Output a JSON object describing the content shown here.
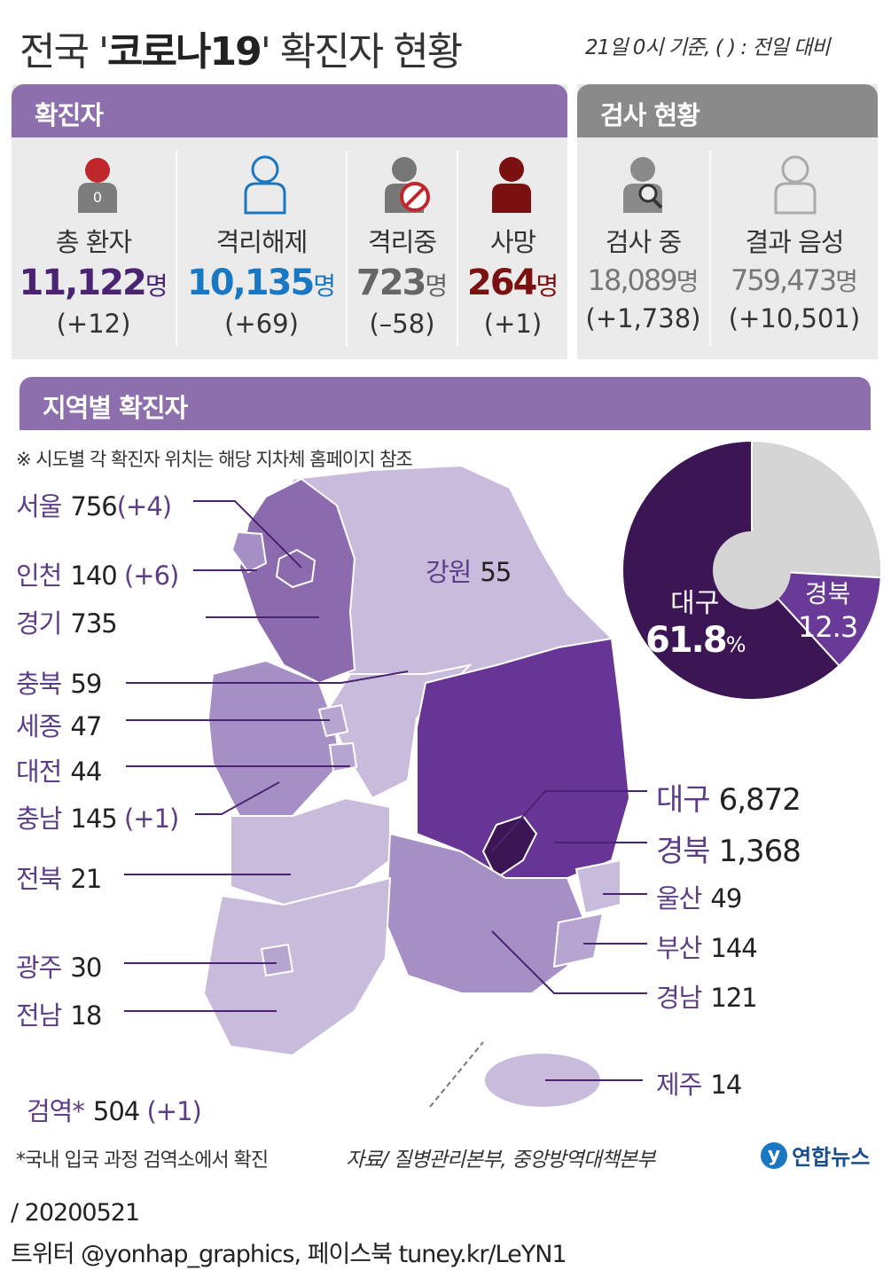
{
  "header": {
    "title_prefix": "전국 '",
    "title_bold": "코로나19",
    "title_suffix": "' 확진자 현황",
    "basis": "21일 0시 기준, ( ) : 전일 대비"
  },
  "confirmed_section": {
    "label": "확진자",
    "stats": [
      {
        "icon": "person-zero-icon",
        "label": "총 환자",
        "value": "11,122",
        "unit": "명",
        "change": "(+12)",
        "color": "#4a2473"
      },
      {
        "icon": "person-outline-icon",
        "label": "격리해제",
        "value": "10,135",
        "unit": "명",
        "change": "(+69)",
        "color": "#1a78c2"
      },
      {
        "icon": "person-no-icon",
        "label": "격리중",
        "value": "723",
        "unit": "명",
        "change": "(–58)",
        "color": "#666666"
      },
      {
        "icon": "person-dark-icon",
        "label": "사망",
        "value": "264",
        "unit": "명",
        "change": "(+1)",
        "color": "#7a1010"
      }
    ]
  },
  "testing_section": {
    "label": "검사 현황",
    "stats": [
      {
        "icon": "person-search-icon",
        "label": "검사 중",
        "value": "18,089",
        "unit": "명",
        "change": "(+1,738)",
        "color": "#777777"
      },
      {
        "icon": "person-light-outline-icon",
        "label": "결과 음성",
        "value": "759,473",
        "unit": "명",
        "change": "(+10,501)",
        "color": "#777777"
      }
    ]
  },
  "regional_section": {
    "label": "지역별 확진자",
    "note": "※ 시도별 각 확진자 위치는 해당 지차체 홈페이지 참조"
  },
  "regions_left": [
    {
      "name": "서울",
      "value": "756",
      "change": "(+4)"
    },
    {
      "name": "인천",
      "value": "140",
      "change": "(+6)"
    },
    {
      "name": "경기",
      "value": "735",
      "change": ""
    },
    {
      "name": "충북",
      "value": "59",
      "change": ""
    },
    {
      "name": "세종",
      "value": "47",
      "change": ""
    },
    {
      "name": "대전",
      "value": "44",
      "change": ""
    },
    {
      "name": "충남",
      "value": "145",
      "change": "(+1)"
    },
    {
      "name": "전북",
      "value": "21",
      "change": ""
    },
    {
      "name": "광주",
      "value": "30",
      "change": ""
    },
    {
      "name": "전남",
      "value": "18",
      "change": ""
    }
  ],
  "regions_right": [
    {
      "name": "대구",
      "value": "6,872"
    },
    {
      "name": "경북",
      "value": "1,368"
    },
    {
      "name": "울산",
      "value": "49"
    },
    {
      "name": "부산",
      "value": "144"
    },
    {
      "name": "경남",
      "value": "121"
    },
    {
      "name": "제주",
      "value": "14"
    }
  ],
  "gangwon": {
    "name": "강원",
    "value": "55"
  },
  "quarantine": {
    "name": "검역*",
    "value": "504",
    "change": "(+1)"
  },
  "pie": {
    "slices": [
      {
        "label": "대구",
        "value": 61.8,
        "display": "61.8",
        "unit": "%",
        "color": "#3b1554"
      },
      {
        "label": "경북",
        "value": 12.3,
        "display": "12.3",
        "unit": "",
        "color": "#6a3a98"
      },
      {
        "label": "",
        "value": 25.9,
        "display": "",
        "unit": "",
        "color": "#d5d5d5"
      }
    ]
  },
  "colors": {
    "gyeonggi": "#8b6aae",
    "light": "#c9bbdc",
    "mid": "#a58fc4",
    "gyeongbuk": "#673595",
    "daegu": "#3b1554"
  },
  "footnotes": {
    "quarantine_note": "*국내 입국 과정 검역소에서 확진",
    "source": "자료/ 질병관리본부, 중앙방역대책본부",
    "logo": "연합뉴스"
  },
  "footer": {
    "date": "/ 20200521",
    "social": "트위터 @yonhap_graphics, 페이스북 tuney.kr/LeYN1"
  }
}
